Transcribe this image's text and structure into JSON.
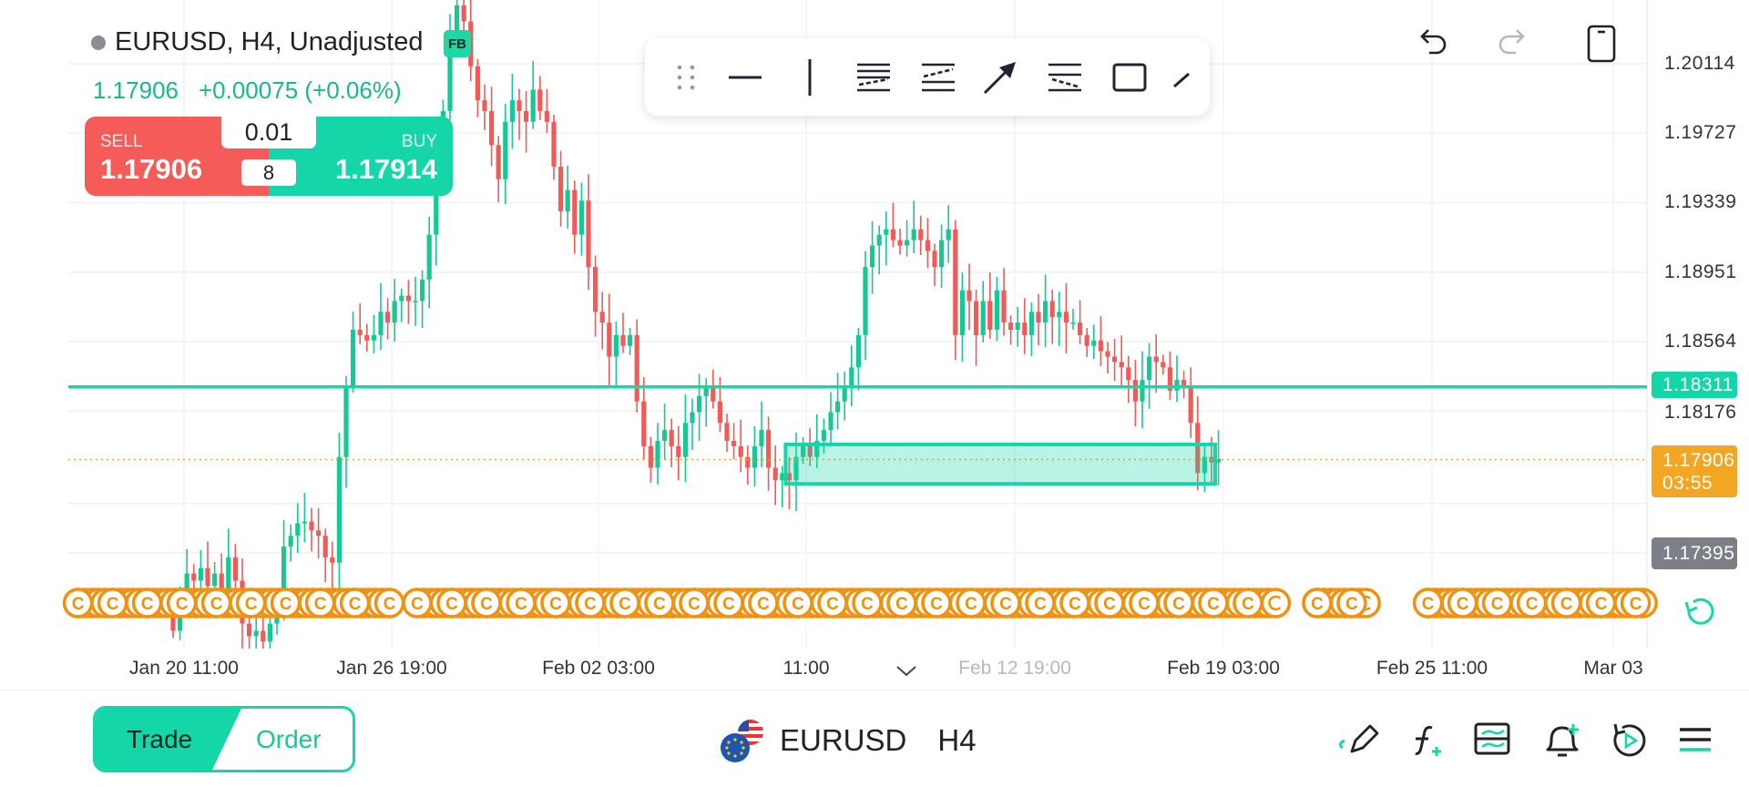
{
  "header": {
    "symbol_title": "EURUSD, H4, Unadjusted",
    "badge": "FB",
    "last_price": "1.17906",
    "change": "+0.00075 (+0.06%)"
  },
  "trade_panel": {
    "sell_label": "SELL",
    "sell_price": "1.17906",
    "buy_label": "BUY",
    "buy_price": "1.17914",
    "lot": "0.01",
    "spread": "8"
  },
  "drawing_toolbar": {
    "tools": [
      "drag-handle",
      "horizontal-line",
      "vertical-line",
      "parallel-channel-bottom",
      "parallel-channel-top",
      "arrow",
      "fib-retracement",
      "rectangle",
      "trend-line"
    ]
  },
  "price_axis": {
    "labels": [
      "1.20114",
      "1.19727",
      "1.19339",
      "1.18951",
      "1.18564",
      "1.18176"
    ],
    "horizontal_line_price": "1.18311",
    "current_price": "1.17906",
    "countdown": "03:55",
    "low_marker": "1.17395"
  },
  "time_axis": {
    "labels": [
      "Jan 20 11:00",
      "Jan 26 19:00",
      "Feb 02 03:00",
      "11:00",
      "Feb 12 19:00",
      "Feb 19 03:00",
      "Feb 25 11:00",
      "Mar 03"
    ]
  },
  "bottom_bar": {
    "trade_label": "Trade",
    "order_label": "Order",
    "symbol": "EURUSD",
    "timeframe": "H4"
  },
  "colors": {
    "up": "#15c995",
    "down": "#f05a57",
    "accent": "#15d6a8",
    "current": "#f2a623",
    "marker": "#f0920f",
    "low_badge": "#7c7f86"
  },
  "chart_data": {
    "type": "candlestick",
    "symbol": "EURUSD",
    "timeframe": "H4",
    "ylim": [
      1.17,
      1.2047
    ],
    "closes": [
      1.1695,
      1.1711,
      1.1727,
      1.1723,
      1.173,
      1.172,
      1.1727,
      1.1717,
      1.1736,
      1.1723,
      1.1699,
      1.1692,
      1.1695,
      1.1689,
      1.1699,
      1.1708,
      1.1742,
      1.1748,
      1.1755,
      1.1756,
      1.1751,
      1.1748,
      1.1736,
      1.1733,
      1.1792,
      1.1832,
      1.1863,
      1.186,
      1.1857,
      1.186,
      1.1873,
      1.1867,
      1.1879,
      1.1882,
      1.1879,
      1.1879,
      1.1891,
      1.1916,
      1.1947,
      1.1985,
      1.2028,
      1.2044,
      1.2035,
      1.201,
      1.1991,
      1.1985,
      1.1966,
      1.1947,
      1.1979,
      1.1991,
      1.1985,
      1.1979,
      1.1997,
      1.1985,
      1.1979,
      1.1954,
      1.1929,
      1.1941,
      1.1916,
      1.1935,
      1.1898,
      1.1873,
      1.1867,
      1.1848,
      1.186,
      1.1854,
      1.186,
      1.1823,
      1.1798,
      1.1786,
      1.1801,
      1.1807,
      1.1798,
      1.1792,
      1.1811,
      1.1817,
      1.1826,
      1.1832,
      1.1823,
      1.1811,
      1.1801,
      1.1798,
      1.1792,
      1.1786,
      1.1798,
      1.1807,
      1.1786,
      1.1779,
      1.1783,
      1.1779,
      1.1792,
      1.1798,
      1.1792,
      1.1801,
      1.1807,
      1.1817,
      1.1823,
      1.1832,
      1.1842,
      1.186,
      1.1898,
      1.191,
      1.1916,
      1.1919,
      1.1913,
      1.191,
      1.1913,
      1.1919,
      1.1913,
      1.1907,
      1.1898,
      1.1913,
      1.1919,
      1.186,
      1.1885,
      1.1879,
      1.186,
      1.1879,
      1.1863,
      1.1885,
      1.1867,
      1.1863,
      1.1867,
      1.186,
      1.1873,
      1.1867,
      1.1879,
      1.187,
      1.1873,
      1.1867,
      1.1867,
      1.186,
      1.1854,
      1.1857,
      1.1851,
      1.1848,
      1.1845,
      1.1842,
      1.1835,
      1.1823,
      1.1835,
      1.1848,
      1.1845,
      1.1842,
      1.1829,
      1.1835,
      1.1832,
      1.1811,
      1.1783,
      1.1792,
      1.1789,
      1.1791
    ],
    "horizontal_line": 1.18311,
    "current_price_line": 1.17906,
    "zone_rectangle": {
      "price_top": 1.1799,
      "price_bottom": 1.1777,
      "start_candle": 89,
      "end_candle": 150
    },
    "event_marker_label": "C",
    "event_marker_groups": [
      [
        -14,
        31
      ],
      [
        35,
        159
      ],
      [
        165,
        172
      ],
      [
        181,
        212
      ]
    ]
  }
}
